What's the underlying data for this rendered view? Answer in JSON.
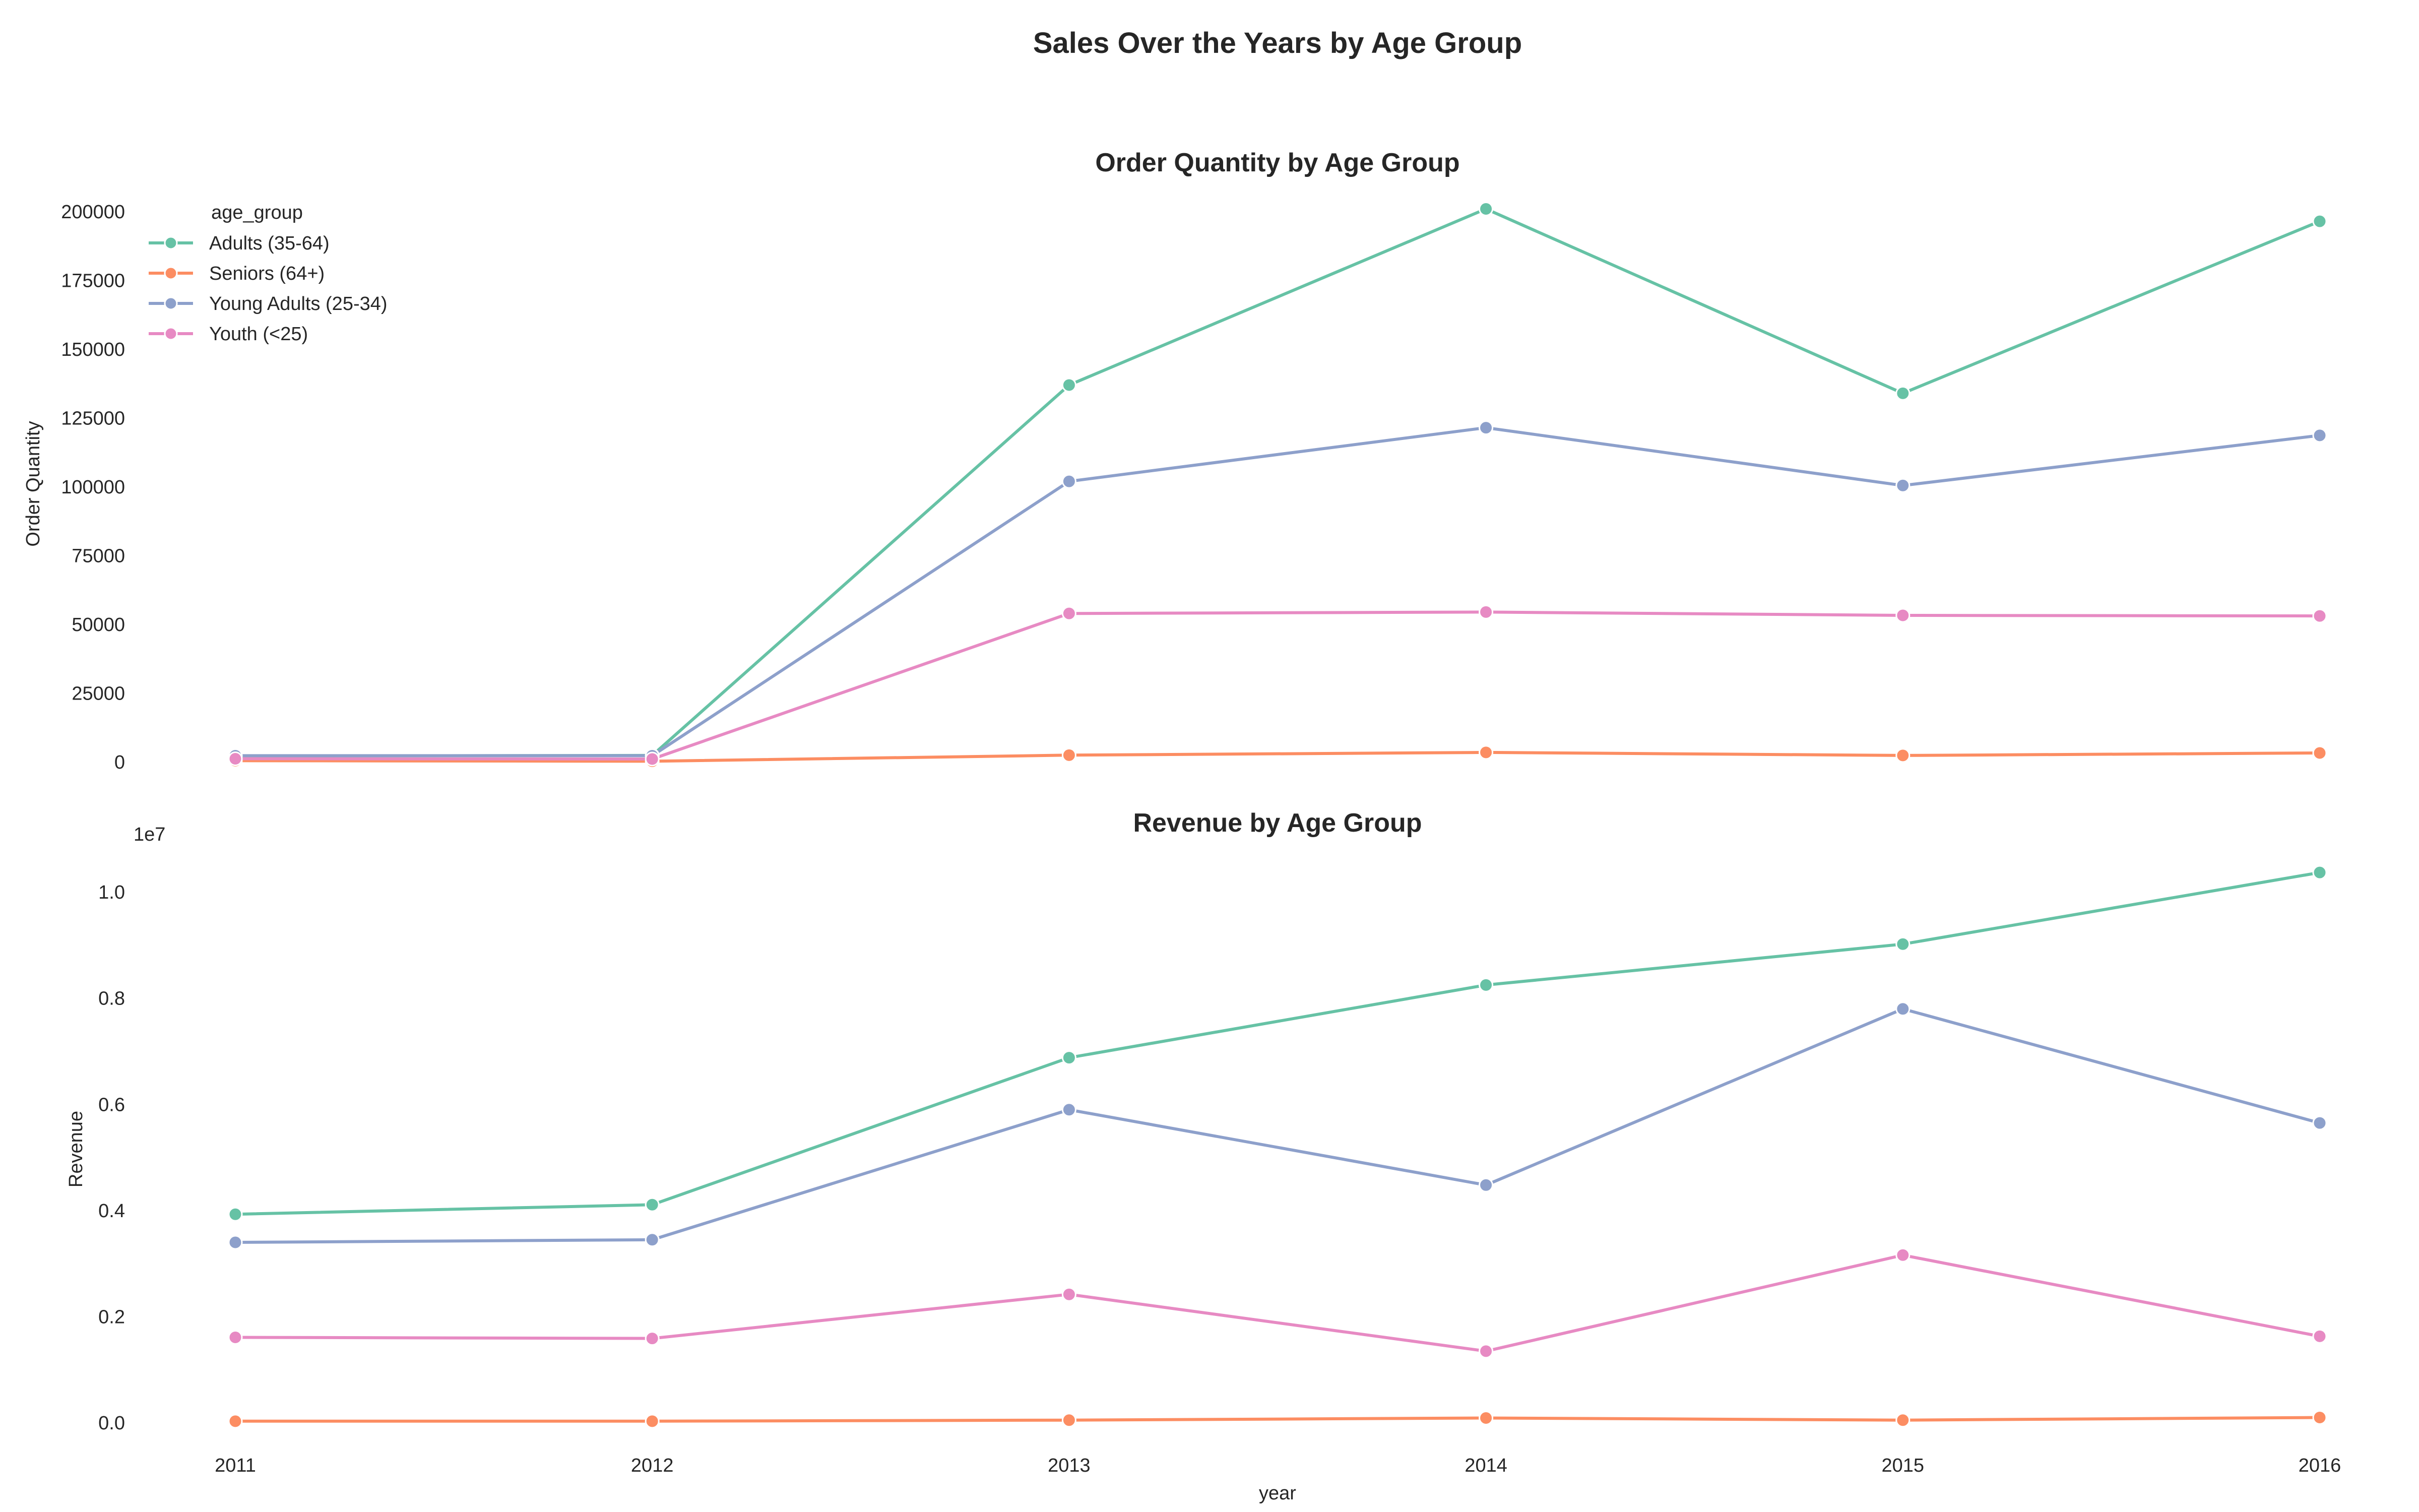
{
  "figure": {
    "title": "Sales Over the Years by Age Group"
  },
  "colors": {
    "Adults (35-64)": "#66c2a5",
    "Seniors (64+)": "#fc8d62",
    "Young Adults (25-34)": "#8da0cb",
    "Youth (<25)": "#e78ac3"
  },
  "chart_data": [
    {
      "type": "line",
      "title": "Order Quantity by Age Group",
      "xlabel": "",
      "ylabel": "Order Quantity",
      "x": [
        2011,
        2012,
        2013,
        2014,
        2015,
        2016
      ],
      "xlim": [
        2011,
        2016
      ],
      "ylim": [
        0,
        200000
      ],
      "yticks": [
        0,
        25000,
        50000,
        75000,
        100000,
        125000,
        150000,
        175000,
        200000
      ],
      "ytick_labels": [
        "0",
        "25000",
        "50000",
        "75000",
        "100000",
        "125000",
        "150000",
        "175000",
        "200000"
      ],
      "grid": false,
      "legend": {
        "title": "age_group",
        "placement": "upper-left",
        "entries": [
          "Adults (35-64)",
          "Seniors (64+)",
          "Young Adults (25-34)",
          "Youth (<25)"
        ]
      },
      "series": [
        {
          "name": "Adults (35-64)",
          "values": [
            2200,
            2400,
            137000,
            201000,
            134000,
            196500
          ]
        },
        {
          "name": "Seniors (64+)",
          "values": [
            500,
            300,
            2500,
            3500,
            2400,
            3300
          ]
        },
        {
          "name": "Young Adults (25-34)",
          "values": [
            2300,
            2300,
            102000,
            121500,
            100500,
            118700
          ]
        },
        {
          "name": "Youth (<25)",
          "values": [
            1200,
            1100,
            54000,
            54500,
            53300,
            53100
          ]
        }
      ]
    },
    {
      "type": "line",
      "title": "Revenue by Age Group",
      "xlabel": "year",
      "ylabel": "Revenue",
      "offset_text": "1e7",
      "x": [
        2011,
        2012,
        2013,
        2014,
        2015,
        2016
      ],
      "xlim": [
        2011,
        2016
      ],
      "xtick_labels": [
        "2011",
        "2012",
        "2013",
        "2014",
        "2015",
        "2016"
      ],
      "ylim": [
        0,
        10400000
      ],
      "yticks": [
        0,
        2000000,
        4000000,
        6000000,
        8000000,
        10000000
      ],
      "ytick_labels": [
        "0.0",
        "0.2",
        "0.4",
        "0.6",
        "0.8",
        "1.0"
      ],
      "grid": false,
      "series": [
        {
          "name": "Adults (35-64)",
          "values": [
            3930000,
            4110000,
            6880000,
            8250000,
            9020000,
            10370000
          ]
        },
        {
          "name": "Seniors (64+)",
          "values": [
            30000,
            30000,
            50000,
            90000,
            50000,
            100000
          ]
        },
        {
          "name": "Young Adults (25-34)",
          "values": [
            3400000,
            3450000,
            5900000,
            4480000,
            7800000,
            5650000
          ]
        },
        {
          "name": "Youth (<25)",
          "values": [
            1610000,
            1590000,
            2420000,
            1350000,
            3160000,
            1630000
          ]
        }
      ]
    }
  ]
}
